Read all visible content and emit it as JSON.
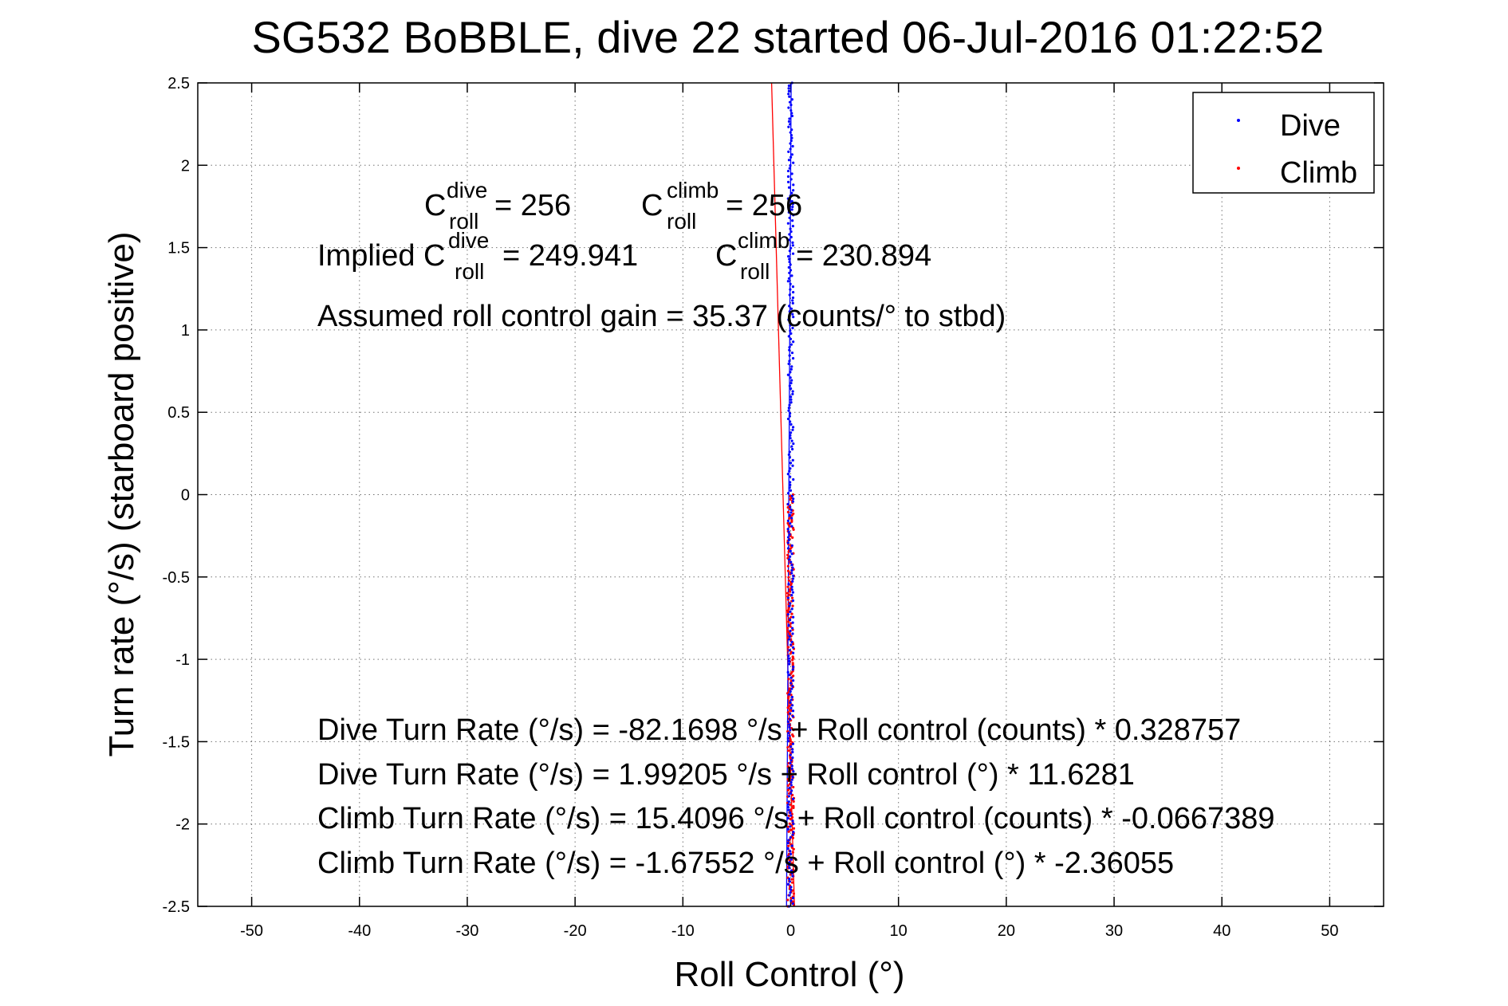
{
  "chart_data": {
    "type": "scatter",
    "title": "SG532 BoBBLE, dive 22 started 06-Jul-2016 01:22:52",
    "xlabel": "Roll Control (°)",
    "ylabel": "Turn rate (°/s) (starboard positive)",
    "xlim": [
      -55,
      55
    ],
    "ylim": [
      -2.5,
      2.5
    ],
    "xticks": [
      -50,
      -40,
      -30,
      -20,
      -10,
      0,
      10,
      20,
      30,
      40,
      50
    ],
    "yticks": [
      -2.5,
      -2,
      -1.5,
      -1,
      -0.5,
      0,
      0.5,
      1,
      1.5,
      2,
      2.5
    ],
    "xtick_labels": [
      "-50",
      "-40",
      "-30",
      "-20",
      "-10",
      "0",
      "10",
      "20",
      "30",
      "40",
      "50"
    ],
    "ytick_labels": [
      "-2.5",
      "-2",
      "-1.5",
      "-1",
      "-0.5",
      "0",
      "0.5",
      "1",
      "1.5",
      "2",
      "2.5"
    ],
    "grid": true,
    "legend_position": "top-right",
    "series": [
      {
        "name": "Dive",
        "color": "#0000ff",
        "points_y_range": [
          -2.5,
          2.5
        ],
        "points_x_approx": 0.0,
        "fit": {
          "intercept": 1.99205,
          "slope": 11.6281
        }
      },
      {
        "name": "Climb",
        "color": "#ff0000",
        "points_y_range": [
          -2.5,
          0.0
        ],
        "points_x_approx": 0.0,
        "fit": {
          "intercept": -1.67552,
          "slope": -2.36055
        }
      }
    ],
    "annotations": {
      "c_roll_dive": {
        "prefix": "C",
        "sup": "dive",
        "sub": "roll",
        "value": " = 256"
      },
      "c_roll_climb": {
        "prefix": "C",
        "sup": "climb",
        "sub": "roll",
        "value": " = 256"
      },
      "implied_prefix": "Implied C",
      "implied_dive": {
        "sup": "dive",
        "sub": "roll",
        "value": " = 249.941"
      },
      "implied_climb": {
        "prefix": "C",
        "sup": "climb",
        "sub": "roll",
        "value": " = 230.894"
      },
      "gain": "Assumed roll control gain = 35.37 (counts/° to stbd)",
      "lines": [
        "Dive Turn Rate (°/s) = -82.1698 °/s + Roll control (counts) * 0.328757",
        "Dive Turn Rate (°/s) = 1.99205 °/s + Roll control (°) * 11.6281",
        "Climb Turn Rate (°/s) = 15.4096 °/s + Roll control (counts) * -0.0667389",
        "Climb Turn Rate (°/s) = -1.67552 °/s + Roll control (°) * -2.36055"
      ]
    }
  }
}
